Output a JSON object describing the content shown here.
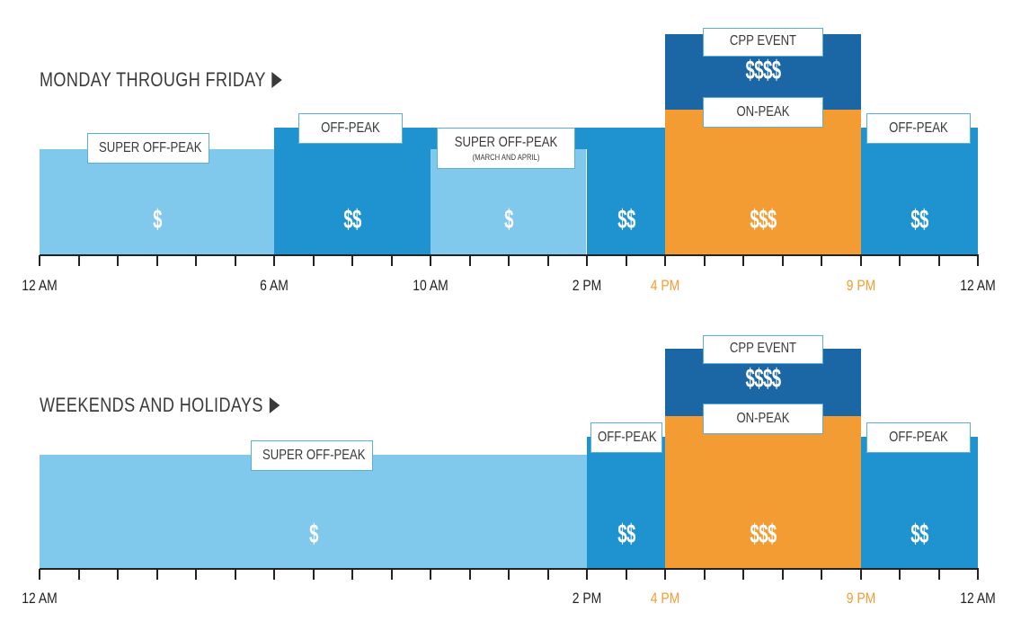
{
  "colors": {
    "super_off_peak": "#80c9ec",
    "off_peak": "#1e93d0",
    "on_peak": "#f39c33",
    "cpp_event": "#1b66a5",
    "highlight_tick": "#f39c33",
    "axis": "#222222"
  },
  "schedules": [
    {
      "title": "MONDAY THROUGH FRIDAY",
      "arrow_icon": "triangle-right-icon",
      "periods": [
        {
          "name": "SUPER OFF-PEAK",
          "sub": "",
          "start": 0,
          "end": 6,
          "level": 1,
          "tier": "super_off_peak",
          "price": "$"
        },
        {
          "name": "OFF-PEAK",
          "sub": "",
          "start": 6,
          "end": 10,
          "level": 2,
          "tier": "off_peak",
          "price": "$$"
        },
        {
          "name": "SUPER OFF-PEAK",
          "sub": "(MARCH AND APRIL)",
          "start": 10,
          "end": 14,
          "level": 1,
          "tier": "super_off_peak",
          "price": "$"
        },
        {
          "name": "",
          "sub": "",
          "start": 14,
          "end": 16,
          "level": 2,
          "tier": "off_peak",
          "price": "$$"
        },
        {
          "name": "ON-PEAK",
          "sub": "",
          "start": 16,
          "end": 21,
          "level": 3,
          "tier": "on_peak",
          "price": "$$$"
        },
        {
          "name": "OFF-PEAK",
          "sub": "",
          "start": 21,
          "end": 24,
          "level": 2,
          "tier": "off_peak",
          "price": "$$"
        }
      ],
      "cpp_event": {
        "name": "CPP EVENT",
        "start": 16,
        "end": 21,
        "price": "$$$$"
      },
      "axis_labels": [
        {
          "hour": 0,
          "text": "12 AM",
          "highlight": false
        },
        {
          "hour": 6,
          "text": "6 AM",
          "highlight": false
        },
        {
          "hour": 10,
          "text": "10 AM",
          "highlight": false
        },
        {
          "hour": 14,
          "text": "2 PM",
          "highlight": false
        },
        {
          "hour": 16,
          "text": "4 PM",
          "highlight": true
        },
        {
          "hour": 21,
          "text": "9 PM",
          "highlight": true
        },
        {
          "hour": 24,
          "text": "12 AM",
          "highlight": false
        }
      ]
    },
    {
      "title": "WEEKENDS AND HOLIDAYS",
      "arrow_icon": "triangle-right-icon",
      "periods": [
        {
          "name": "SUPER OFF-PEAK",
          "sub": "",
          "start": 0,
          "end": 14,
          "level": 1,
          "tier": "super_off_peak",
          "price": "$"
        },
        {
          "name": "OFF-PEAK",
          "sub": "",
          "start": 14,
          "end": 16,
          "level": 2,
          "tier": "off_peak",
          "price": "$$"
        },
        {
          "name": "ON-PEAK",
          "sub": "",
          "start": 16,
          "end": 21,
          "level": 3,
          "tier": "on_peak",
          "price": "$$$"
        },
        {
          "name": "OFF-PEAK",
          "sub": "",
          "start": 21,
          "end": 24,
          "level": 2,
          "tier": "off_peak",
          "price": "$$"
        }
      ],
      "cpp_event": {
        "name": "CPP EVENT",
        "start": 16,
        "end": 21,
        "price": "$$$$"
      },
      "axis_labels": [
        {
          "hour": 0,
          "text": "12 AM",
          "highlight": false
        },
        {
          "hour": 14,
          "text": "2 PM",
          "highlight": false
        },
        {
          "hour": 16,
          "text": "4 PM",
          "highlight": true
        },
        {
          "hour": 21,
          "text": "9 PM",
          "highlight": true
        },
        {
          "hour": 24,
          "text": "12 AM",
          "highlight": false
        }
      ]
    }
  ]
}
